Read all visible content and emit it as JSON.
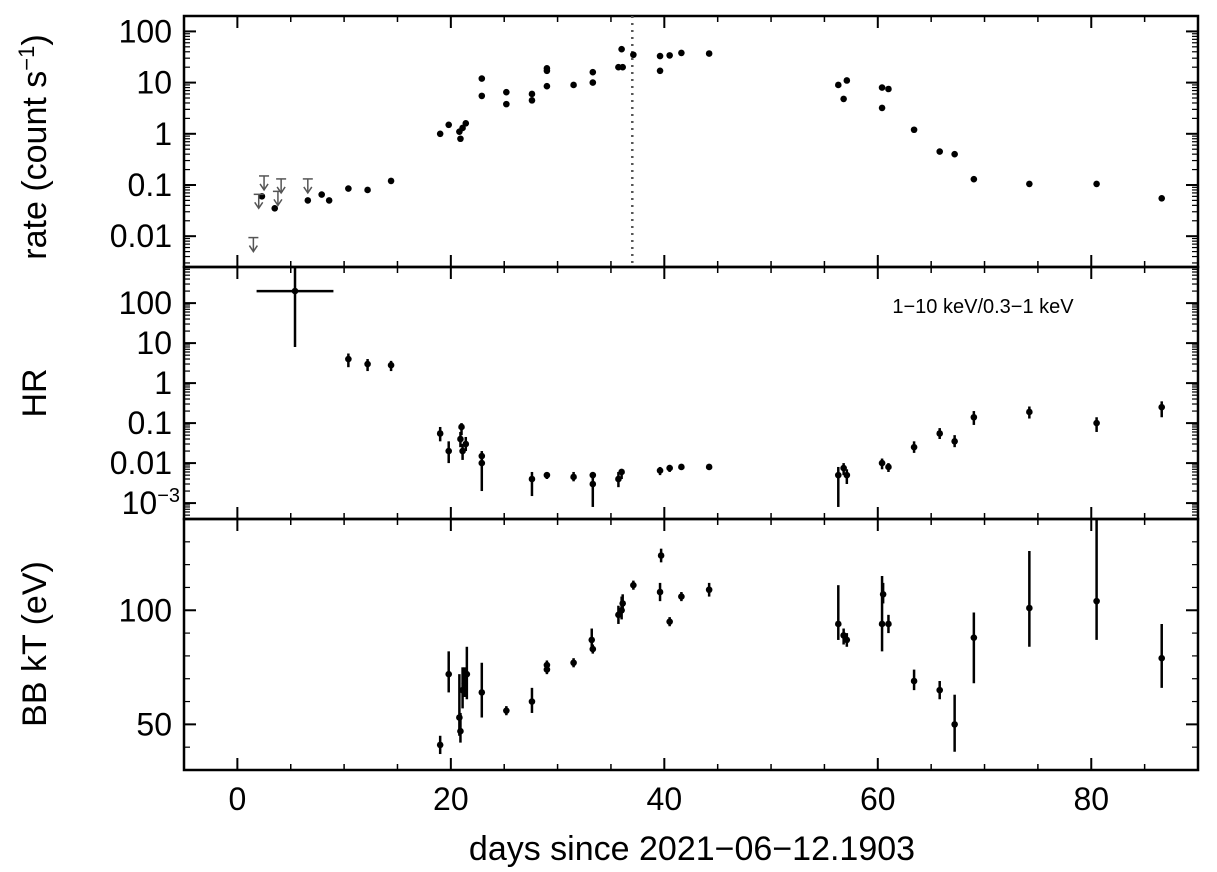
{
  "chart_data": [
    {
      "type": "scatter",
      "panel": "rate",
      "ylabel": "rate (count s",
      "ylabel_sup": "−1",
      "ylabel_close": ")",
      "yscale": "log",
      "xlim": [
        -5,
        90
      ],
      "ylim": [
        0.0025,
        200
      ],
      "yticks": [
        {
          "v": 100,
          "label": "100"
        },
        {
          "v": 10,
          "label": "10"
        },
        {
          "v": 1,
          "label": "1"
        },
        {
          "v": 0.1,
          "label": "0.1"
        },
        {
          "v": 0.01,
          "label": "0.01"
        }
      ],
      "vline_x": 37.0,
      "points": [
        {
          "x": 2.3,
          "y": 0.06
        },
        {
          "x": 3.5,
          "y": 0.035
        },
        {
          "x": 6.6,
          "y": 0.05
        },
        {
          "x": 7.9,
          "y": 0.065
        },
        {
          "x": 8.6,
          "y": 0.05
        },
        {
          "x": 10.4,
          "y": 0.085
        },
        {
          "x": 12.2,
          "y": 0.08
        },
        {
          "x": 14.4,
          "y": 0.12
        },
        {
          "x": 19.0,
          "y": 1.0
        },
        {
          "x": 19.8,
          "y": 1.5
        },
        {
          "x": 20.8,
          "y": 1.1
        },
        {
          "x": 20.9,
          "y": 0.8
        },
        {
          "x": 21.1,
          "y": 1.3
        },
        {
          "x": 21.4,
          "y": 1.6
        },
        {
          "x": 22.9,
          "y": 12
        },
        {
          "x": 22.9,
          "y": 5.5
        },
        {
          "x": 25.2,
          "y": 6.5
        },
        {
          "x": 25.2,
          "y": 3.8
        },
        {
          "x": 27.6,
          "y": 6
        },
        {
          "x": 27.6,
          "y": 4.5
        },
        {
          "x": 29.0,
          "y": 19
        },
        {
          "x": 29.0,
          "y": 17
        },
        {
          "x": 29.0,
          "y": 8.5
        },
        {
          "x": 31.5,
          "y": 9
        },
        {
          "x": 33.3,
          "y": 16
        },
        {
          "x": 33.3,
          "y": 10
        },
        {
          "x": 35.7,
          "y": 20
        },
        {
          "x": 36.0,
          "y": 45
        },
        {
          "x": 36.1,
          "y": 20
        },
        {
          "x": 37.1,
          "y": 35
        },
        {
          "x": 39.6,
          "y": 33
        },
        {
          "x": 39.6,
          "y": 17
        },
        {
          "x": 40.5,
          "y": 34
        },
        {
          "x": 41.6,
          "y": 38
        },
        {
          "x": 44.2,
          "y": 37
        },
        {
          "x": 56.3,
          "y": 9
        },
        {
          "x": 56.8,
          "y": 4.8
        },
        {
          "x": 57.1,
          "y": 11
        },
        {
          "x": 60.4,
          "y": 3.2
        },
        {
          "x": 60.4,
          "y": 8
        },
        {
          "x": 61.0,
          "y": 7.5
        },
        {
          "x": 63.4,
          "y": 1.2
        },
        {
          "x": 65.8,
          "y": 0.45
        },
        {
          "x": 67.2,
          "y": 0.4
        },
        {
          "x": 69.0,
          "y": 0.13
        },
        {
          "x": 74.2,
          "y": 0.105
        },
        {
          "x": 80.5,
          "y": 0.105
        },
        {
          "x": 86.6,
          "y": 0.055
        }
      ],
      "upper_limits": [
        {
          "x": 1.5,
          "y": 0.005
        },
        {
          "x": 2.0,
          "y": 0.035
        },
        {
          "x": 2.5,
          "y": 0.08
        },
        {
          "x": 3.8,
          "y": 0.04
        },
        {
          "x": 4.1,
          "y": 0.07
        },
        {
          "x": 6.6,
          "y": 0.07
        }
      ]
    },
    {
      "type": "scatter",
      "panel": "hr",
      "ylabel": "HR",
      "annotation": "1−10 keV/0.3−1 keV",
      "yscale": "log",
      "xlim": [
        -5,
        90
      ],
      "ylim": [
        0.0004,
        800
      ],
      "yticks": [
        {
          "v": 100,
          "label": "100"
        },
        {
          "v": 10,
          "label": "10"
        },
        {
          "v": 1,
          "label": "1"
        },
        {
          "v": 0.1,
          "label": "0.1"
        },
        {
          "v": 0.01,
          "label": "0.01"
        },
        {
          "v": 0.001,
          "label": "10",
          "sup": "−3"
        }
      ],
      "points": [
        {
          "x": 5.4,
          "y": 200,
          "ylo": 8,
          "yhi": 800,
          "xlo": 1.8,
          "xhi": 9.0
        },
        {
          "x": 10.4,
          "y": 4.0,
          "ylo": 2.5,
          "yhi": 5.5
        },
        {
          "x": 12.2,
          "y": 3.0,
          "ylo": 2.0,
          "yhi": 4.0
        },
        {
          "x": 14.4,
          "y": 2.8,
          "ylo": 2.0,
          "yhi": 3.6
        },
        {
          "x": 19.0,
          "y": 0.055,
          "ylo": 0.035,
          "yhi": 0.08
        },
        {
          "x": 19.8,
          "y": 0.02,
          "ylo": 0.01,
          "yhi": 0.035
        },
        {
          "x": 20.9,
          "y": 0.04,
          "ylo": 0.025,
          "yhi": 0.06
        },
        {
          "x": 21.0,
          "y": 0.08,
          "ylo": 0.05,
          "yhi": 0.1
        },
        {
          "x": 21.1,
          "y": 0.02,
          "ylo": 0.012,
          "yhi": 0.03
        },
        {
          "x": 21.4,
          "y": 0.03,
          "ylo": 0.02,
          "yhi": 0.045
        },
        {
          "x": 22.9,
          "y": 0.015,
          "ylo": 0.01,
          "yhi": 0.02
        },
        {
          "x": 22.9,
          "y": 0.01,
          "ylo": 0.002,
          "yhi": 0.015
        },
        {
          "x": 27.6,
          "y": 0.004,
          "ylo": 0.0015,
          "yhi": 0.006
        },
        {
          "x": 29.0,
          "y": 0.005,
          "ylo": 0.004,
          "yhi": 0.006
        },
        {
          "x": 31.5,
          "y": 0.0045,
          "ylo": 0.0035,
          "yhi": 0.006
        },
        {
          "x": 33.3,
          "y": 0.003,
          "ylo": 0.0008,
          "yhi": 0.006
        },
        {
          "x": 33.3,
          "y": 0.005,
          "ylo": 0.004,
          "yhi": 0.006
        },
        {
          "x": 35.7,
          "y": 0.004,
          "ylo": 0.0025,
          "yhi": 0.006
        },
        {
          "x": 36.0,
          "y": 0.006,
          "ylo": 0.004,
          "yhi": 0.007
        },
        {
          "x": 39.6,
          "y": 0.0065,
          "ylo": 0.005,
          "yhi": 0.008
        },
        {
          "x": 40.5,
          "y": 0.0075,
          "ylo": 0.006,
          "yhi": 0.009
        },
        {
          "x": 41.6,
          "y": 0.008,
          "ylo": 0.007,
          "yhi": 0.0095
        },
        {
          "x": 44.2,
          "y": 0.008,
          "ylo": 0.007,
          "yhi": 0.0095
        },
        {
          "x": 56.3,
          "y": 0.005,
          "ylo": 0.0008,
          "yhi": 0.008
        },
        {
          "x": 56.8,
          "y": 0.0075,
          "ylo": 0.005,
          "yhi": 0.01
        },
        {
          "x": 57.1,
          "y": 0.005,
          "ylo": 0.003,
          "yhi": 0.007
        },
        {
          "x": 60.4,
          "y": 0.01,
          "ylo": 0.007,
          "yhi": 0.013
        },
        {
          "x": 61.0,
          "y": 0.008,
          "ylo": 0.006,
          "yhi": 0.01
        },
        {
          "x": 63.4,
          "y": 0.025,
          "ylo": 0.018,
          "yhi": 0.035
        },
        {
          "x": 65.8,
          "y": 0.055,
          "ylo": 0.04,
          "yhi": 0.075
        },
        {
          "x": 67.2,
          "y": 0.035,
          "ylo": 0.025,
          "yhi": 0.05
        },
        {
          "x": 69.0,
          "y": 0.14,
          "ylo": 0.09,
          "yhi": 0.2
        },
        {
          "x": 74.2,
          "y": 0.19,
          "ylo": 0.13,
          "yhi": 0.26
        },
        {
          "x": 80.5,
          "y": 0.1,
          "ylo": 0.06,
          "yhi": 0.14
        },
        {
          "x": 86.6,
          "y": 0.25,
          "ylo": 0.14,
          "yhi": 0.35
        }
      ]
    },
    {
      "type": "scatter",
      "panel": "kt",
      "ylabel": "BB kT (eV)",
      "yscale": "linear",
      "xlim": [
        -5,
        90
      ],
      "ylim": [
        30,
        140
      ],
      "yticks": [
        {
          "v": 100,
          "label": "100"
        },
        {
          "v": 50,
          "label": "50"
        }
      ],
      "points": [
        {
          "x": 19.0,
          "y": 41,
          "ylo": 37,
          "yhi": 45
        },
        {
          "x": 19.8,
          "y": 72,
          "ylo": 64,
          "yhi": 82
        },
        {
          "x": 20.8,
          "y": 53,
          "ylo": 45,
          "yhi": 72
        },
        {
          "x": 20.9,
          "y": 47,
          "ylo": 42,
          "yhi": 55
        },
        {
          "x": 21.1,
          "y": 65,
          "ylo": 57,
          "yhi": 75
        },
        {
          "x": 21.3,
          "y": 68,
          "ylo": 62,
          "yhi": 75
        },
        {
          "x": 21.5,
          "y": 72,
          "ylo": 61,
          "yhi": 84
        },
        {
          "x": 22.9,
          "y": 64,
          "ylo": 53,
          "yhi": 77
        },
        {
          "x": 25.2,
          "y": 56,
          "ylo": 54,
          "yhi": 58
        },
        {
          "x": 27.6,
          "y": 60,
          "ylo": 55,
          "yhi": 66
        },
        {
          "x": 29.0,
          "y": 74,
          "ylo": 72,
          "yhi": 77
        },
        {
          "x": 29.0,
          "y": 76,
          "ylo": 74,
          "yhi": 78
        },
        {
          "x": 31.5,
          "y": 77,
          "ylo": 75,
          "yhi": 79
        },
        {
          "x": 33.3,
          "y": 83,
          "ylo": 81,
          "yhi": 85
        },
        {
          "x": 33.2,
          "y": 87,
          "ylo": 83,
          "yhi": 92
        },
        {
          "x": 35.7,
          "y": 98,
          "ylo": 94,
          "yhi": 102
        },
        {
          "x": 36.0,
          "y": 100,
          "ylo": 96,
          "yhi": 106
        },
        {
          "x": 36.1,
          "y": 103,
          "ylo": 99,
          "yhi": 107
        },
        {
          "x": 37.1,
          "y": 111,
          "ylo": 109,
          "yhi": 113
        },
        {
          "x": 39.6,
          "y": 108,
          "ylo": 104,
          "yhi": 112
        },
        {
          "x": 39.7,
          "y": 124,
          "ylo": 121,
          "yhi": 127
        },
        {
          "x": 40.5,
          "y": 95,
          "ylo": 93,
          "yhi": 97
        },
        {
          "x": 41.6,
          "y": 106,
          "ylo": 104,
          "yhi": 108
        },
        {
          "x": 44.2,
          "y": 109,
          "ylo": 106,
          "yhi": 112
        },
        {
          "x": 56.3,
          "y": 94,
          "ylo": 87,
          "yhi": 111
        },
        {
          "x": 56.8,
          "y": 89,
          "ylo": 85,
          "yhi": 92
        },
        {
          "x": 57.1,
          "y": 87,
          "ylo": 84,
          "yhi": 90
        },
        {
          "x": 60.4,
          "y": 94,
          "ylo": 82,
          "yhi": 115
        },
        {
          "x": 60.5,
          "y": 107,
          "ylo": 103,
          "yhi": 112
        },
        {
          "x": 61.0,
          "y": 94,
          "ylo": 90,
          "yhi": 98
        },
        {
          "x": 63.4,
          "y": 69,
          "ylo": 65,
          "yhi": 74
        },
        {
          "x": 65.8,
          "y": 65,
          "ylo": 61,
          "yhi": 69
        },
        {
          "x": 67.2,
          "y": 50,
          "ylo": 38,
          "yhi": 63
        },
        {
          "x": 69.0,
          "y": 88,
          "ylo": 68,
          "yhi": 99
        },
        {
          "x": 74.2,
          "y": 101,
          "ylo": 84,
          "yhi": 126
        },
        {
          "x": 80.5,
          "y": 104,
          "ylo": 87,
          "yhi": 140
        },
        {
          "x": 86.6,
          "y": 79,
          "ylo": 66,
          "yhi": 94
        }
      ]
    }
  ],
  "x_axis": {
    "label": "days since 2021−06−12.1903",
    "ticks": [
      {
        "v": 0,
        "label": "0"
      },
      {
        "v": 20,
        "label": "20"
      },
      {
        "v": 40,
        "label": "40"
      },
      {
        "v": 60,
        "label": "60"
      },
      {
        "v": 80,
        "label": "80"
      }
    ]
  }
}
